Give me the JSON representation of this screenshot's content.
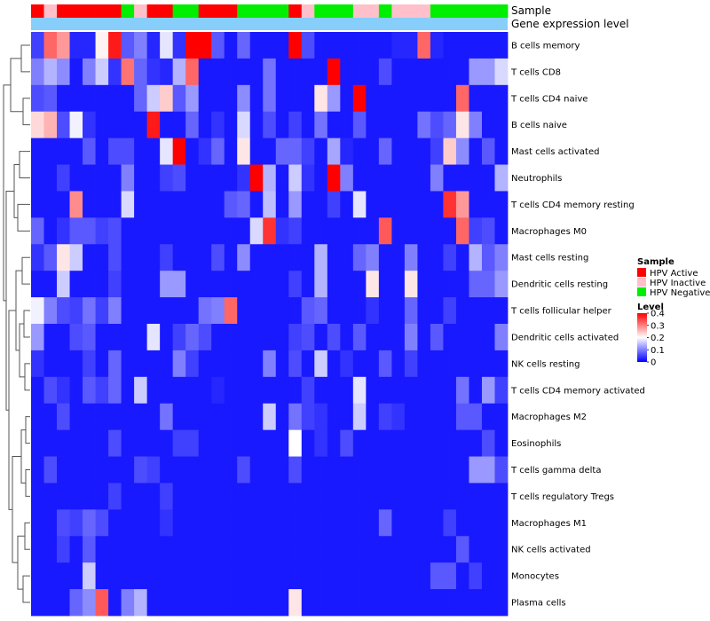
{
  "chart_data": {
    "type": "heatmap",
    "title": "",
    "annotations": {
      "sample_label": "Sample",
      "gene_expression_label": "Gene expression level",
      "samples": [
        "HPV Active",
        "HPV Inactive",
        "HPV Active",
        "HPV Active",
        "HPV Active",
        "HPV Active",
        "HPV Active",
        "HPV Negative",
        "HPV Inactive",
        "HPV Active",
        "HPV Active",
        "HPV Negative",
        "HPV Negative",
        "HPV Active",
        "HPV Active",
        "HPV Active",
        "HPV Negative",
        "HPV Negative",
        "HPV Negative",
        "HPV Negative",
        "HPV Active",
        "HPV Inactive",
        "HPV Negative",
        "HPV Negative",
        "HPV Negative",
        "HPV Inactive",
        "HPV Inactive",
        "HPV Negative",
        "HPV Inactive",
        "HPV Inactive",
        "HPV Inactive",
        "HPV Negative",
        "HPV Negative",
        "HPV Negative",
        "HPV Negative",
        "HPV Negative",
        "HPV Negative"
      ]
    },
    "rows": [
      "B cells memory",
      "T cells CD8",
      "T cells CD4 naive",
      "B cells naive",
      "Mast cells activated",
      "Neutrophils",
      "T cells CD4 memory resting",
      "Macrophages M0",
      "Mast cells resting",
      "Dendritic cells resting",
      "T cells follicular helper",
      "Dendritic cells activated",
      "NK cells resting",
      "T cells CD4 memory activated",
      "Macrophages M2",
      "Eosinophils",
      "T cells gamma delta",
      "T cells regulatory  Tregs",
      "Macrophages M1",
      "NK cells activated",
      "Monocytes",
      "Plasma cells"
    ],
    "values": [
      [
        0.05,
        0.32,
        0.28,
        0.03,
        0.03,
        0.21,
        0.38,
        0.07,
        0.1,
        0.03,
        0.18,
        0.04,
        0.4,
        0.4,
        0.07,
        0.02,
        0.08,
        0.02,
        0.02,
        0.02,
        0.4,
        0.06,
        0.02,
        0.02,
        0.02,
        0.02,
        0.02,
        0.02,
        0.03,
        0.03,
        0.32,
        0.03,
        0.02,
        0.02,
        0.02,
        0.02,
        0.02
      ],
      [
        0.1,
        0.14,
        0.11,
        0.02,
        0.1,
        0.16,
        0.04,
        0.31,
        0.08,
        0.04,
        0.03,
        0.14,
        0.32,
        0.02,
        0.02,
        0.02,
        0.02,
        0.02,
        0.09,
        0.02,
        0.02,
        0.02,
        0.02,
        0.4,
        0.02,
        0.02,
        0.02,
        0.06,
        0.02,
        0.02,
        0.02,
        0.02,
        0.02,
        0.02,
        0.12,
        0.12,
        0.17
      ],
      [
        0.06,
        0.07,
        0.02,
        0.02,
        0.02,
        0.02,
        0.02,
        0.02,
        0.08,
        0.16,
        0.24,
        0.07,
        0.12,
        0.02,
        0.02,
        0.02,
        0.11,
        0.02,
        0.09,
        0.02,
        0.02,
        0.02,
        0.22,
        0.12,
        0.02,
        0.4,
        0.02,
        0.02,
        0.02,
        0.02,
        0.02,
        0.02,
        0.02,
        0.32,
        0.02,
        0.02,
        0.02
      ],
      [
        0.23,
        0.26,
        0.06,
        0.19,
        0.04,
        0.02,
        0.02,
        0.02,
        0.02,
        0.38,
        0.02,
        0.02,
        0.08,
        0.02,
        0.04,
        0.02,
        0.17,
        0.02,
        0.06,
        0.02,
        0.05,
        0.02,
        0.09,
        0.02,
        0.02,
        0.07,
        0.02,
        0.02,
        0.02,
        0.02,
        0.09,
        0.06,
        0.08,
        0.22,
        0.1,
        0.02,
        0.02
      ],
      [
        0.02,
        0.02,
        0.02,
        0.02,
        0.07,
        0.02,
        0.06,
        0.06,
        0.02,
        0.02,
        0.18,
        0.4,
        0.02,
        0.04,
        0.08,
        0.02,
        0.22,
        0.02,
        0.02,
        0.08,
        0.08,
        0.05,
        0.02,
        0.13,
        0.03,
        0.02,
        0.02,
        0.08,
        0.02,
        0.02,
        0.02,
        0.05,
        0.24,
        0.11,
        0.02,
        0.07,
        0.02
      ],
      [
        0.02,
        0.02,
        0.05,
        0.02,
        0.02,
        0.02,
        0.02,
        0.1,
        0.02,
        0.02,
        0.05,
        0.06,
        0.02,
        0.02,
        0.02,
        0.02,
        0.04,
        0.4,
        0.14,
        0.02,
        0.16,
        0.04,
        0.02,
        0.4,
        0.1,
        0.02,
        0.02,
        0.02,
        0.02,
        0.02,
        0.02,
        0.1,
        0.02,
        0.02,
        0.02,
        0.02,
        0.14
      ],
      [
        0.02,
        0.02,
        0.02,
        0.29,
        0.02,
        0.02,
        0.02,
        0.17,
        0.02,
        0.02,
        0.02,
        0.02,
        0.02,
        0.02,
        0.02,
        0.07,
        0.08,
        0.02,
        0.15,
        0.02,
        0.12,
        0.02,
        0.02,
        0.05,
        0.02,
        0.18,
        0.02,
        0.02,
        0.02,
        0.02,
        0.02,
        0.02,
        0.36,
        0.28,
        0.02,
        0.02,
        0.02
      ],
      [
        0.08,
        0.02,
        0.04,
        0.07,
        0.07,
        0.05,
        0.06,
        0.02,
        0.02,
        0.02,
        0.02,
        0.02,
        0.02,
        0.02,
        0.02,
        0.02,
        0.02,
        0.17,
        0.36,
        0.04,
        0.05,
        0.02,
        0.02,
        0.02,
        0.02,
        0.02,
        0.02,
        0.33,
        0.02,
        0.02,
        0.02,
        0.02,
        0.02,
        0.32,
        0.05,
        0.06,
        0.02
      ],
      [
        0.04,
        0.07,
        0.22,
        0.16,
        0.02,
        0.02,
        0.06,
        0.02,
        0.02,
        0.02,
        0.05,
        0.02,
        0.02,
        0.02,
        0.06,
        0.02,
        0.11,
        0.02,
        0.02,
        0.02,
        0.02,
        0.02,
        0.14,
        0.02,
        0.02,
        0.08,
        0.1,
        0.02,
        0.02,
        0.1,
        0.02,
        0.02,
        0.05,
        0.02,
        0.14,
        0.07,
        0.1
      ],
      [
        0.02,
        0.02,
        0.16,
        0.02,
        0.02,
        0.02,
        0.05,
        0.02,
        0.02,
        0.02,
        0.12,
        0.12,
        0.02,
        0.02,
        0.02,
        0.02,
        0.02,
        0.02,
        0.02,
        0.02,
        0.05,
        0.02,
        0.14,
        0.02,
        0.02,
        0.02,
        0.22,
        0.02,
        0.02,
        0.22,
        0.02,
        0.02,
        0.02,
        0.02,
        0.08,
        0.08,
        0.12
      ],
      [
        0.19,
        0.1,
        0.06,
        0.05,
        0.09,
        0.05,
        0.1,
        0.02,
        0.02,
        0.02,
        0.02,
        0.02,
        0.02,
        0.09,
        0.1,
        0.32,
        0.02,
        0.02,
        0.02,
        0.02,
        0.02,
        0.07,
        0.08,
        0.02,
        0.02,
        0.02,
        0.04,
        0.02,
        0.02,
        0.08,
        0.02,
        0.02,
        0.05,
        0.02,
        0.02,
        0.02,
        0.02
      ],
      [
        0.12,
        0.02,
        0.02,
        0.06,
        0.07,
        0.02,
        0.02,
        0.02,
        0.02,
        0.18,
        0.02,
        0.05,
        0.08,
        0.06,
        0.02,
        0.02,
        0.02,
        0.02,
        0.02,
        0.02,
        0.05,
        0.06,
        0.02,
        0.06,
        0.02,
        0.07,
        0.02,
        0.02,
        0.02,
        0.1,
        0.02,
        0.07,
        0.02,
        0.02,
        0.02,
        0.02,
        0.1
      ],
      [
        0.04,
        0.02,
        0.02,
        0.02,
        0.05,
        0.02,
        0.08,
        0.02,
        0.02,
        0.02,
        0.02,
        0.1,
        0.05,
        0.02,
        0.02,
        0.02,
        0.02,
        0.02,
        0.1,
        0.02,
        0.06,
        0.02,
        0.16,
        0.02,
        0.04,
        0.02,
        0.02,
        0.07,
        0.02,
        0.05,
        0.02,
        0.02,
        0.02,
        0.02,
        0.02,
        0.02,
        0.02
      ],
      [
        0.02,
        0.06,
        0.04,
        0.02,
        0.07,
        0.05,
        0.08,
        0.02,
        0.16,
        0.02,
        0.02,
        0.02,
        0.02,
        0.02,
        0.03,
        0.02,
        0.02,
        0.02,
        0.02,
        0.02,
        0.02,
        0.05,
        0.02,
        0.02,
        0.02,
        0.18,
        0.02,
        0.02,
        0.02,
        0.02,
        0.02,
        0.02,
        0.02,
        0.09,
        0.02,
        0.12,
        0.05
      ],
      [
        0.02,
        0.02,
        0.06,
        0.02,
        0.02,
        0.02,
        0.02,
        0.02,
        0.02,
        0.02,
        0.09,
        0.02,
        0.02,
        0.02,
        0.02,
        0.02,
        0.02,
        0.02,
        0.16,
        0.02,
        0.09,
        0.05,
        0.04,
        0.02,
        0.02,
        0.16,
        0.02,
        0.05,
        0.04,
        0.02,
        0.02,
        0.02,
        0.02,
        0.07,
        0.07,
        0.02,
        0.02
      ],
      [
        0.02,
        0.02,
        0.02,
        0.02,
        0.02,
        0.02,
        0.06,
        0.02,
        0.02,
        0.02,
        0.02,
        0.05,
        0.05,
        0.02,
        0.02,
        0.02,
        0.02,
        0.02,
        0.02,
        0.02,
        0.2,
        0.02,
        0.04,
        0.02,
        0.06,
        0.02,
        0.02,
        0.02,
        0.02,
        0.02,
        0.02,
        0.02,
        0.02,
        0.02,
        0.02,
        0.06,
        0.02
      ],
      [
        0.02,
        0.06,
        0.02,
        0.02,
        0.02,
        0.02,
        0.02,
        0.02,
        0.06,
        0.05,
        0.02,
        0.02,
        0.02,
        0.02,
        0.02,
        0.02,
        0.06,
        0.02,
        0.02,
        0.02,
        0.06,
        0.02,
        0.02,
        0.02,
        0.02,
        0.02,
        0.02,
        0.02,
        0.02,
        0.02,
        0.02,
        0.02,
        0.02,
        0.02,
        0.12,
        0.12,
        0.06
      ],
      [
        0.02,
        0.02,
        0.02,
        0.02,
        0.02,
        0.02,
        0.05,
        0.02,
        0.02,
        0.02,
        0.05,
        0.02,
        0.02,
        0.02,
        0.02,
        0.02,
        0.02,
        0.02,
        0.02,
        0.02,
        0.02,
        0.02,
        0.02,
        0.02,
        0.02,
        0.02,
        0.02,
        0.02,
        0.02,
        0.02,
        0.02,
        0.02,
        0.02,
        0.02,
        0.02,
        0.02,
        0.02
      ],
      [
        0.02,
        0.02,
        0.06,
        0.05,
        0.08,
        0.06,
        0.02,
        0.02,
        0.02,
        0.02,
        0.04,
        0.02,
        0.02,
        0.02,
        0.02,
        0.02,
        0.02,
        0.02,
        0.02,
        0.02,
        0.02,
        0.02,
        0.02,
        0.02,
        0.02,
        0.02,
        0.02,
        0.08,
        0.02,
        0.02,
        0.02,
        0.02,
        0.05,
        0.02,
        0.02,
        0.02,
        0.02
      ],
      [
        0.02,
        0.02,
        0.05,
        0.02,
        0.07,
        0.02,
        0.02,
        0.02,
        0.02,
        0.02,
        0.02,
        0.02,
        0.02,
        0.02,
        0.02,
        0.02,
        0.02,
        0.02,
        0.02,
        0.02,
        0.02,
        0.02,
        0.02,
        0.02,
        0.02,
        0.02,
        0.02,
        0.02,
        0.02,
        0.02,
        0.02,
        0.02,
        0.02,
        0.07,
        0.02,
        0.02,
        0.02
      ],
      [
        0.02,
        0.02,
        0.02,
        0.02,
        0.16,
        0.02,
        0.02,
        0.02,
        0.02,
        0.02,
        0.02,
        0.02,
        0.02,
        0.02,
        0.02,
        0.02,
        0.02,
        0.02,
        0.02,
        0.02,
        0.02,
        0.02,
        0.02,
        0.02,
        0.02,
        0.02,
        0.02,
        0.02,
        0.02,
        0.02,
        0.02,
        0.07,
        0.07,
        0.02,
        0.05,
        0.02,
        0.02
      ],
      [
        0.02,
        0.02,
        0.02,
        0.08,
        0.11,
        0.33,
        0.02,
        0.1,
        0.14,
        0.02,
        0.02,
        0.02,
        0.02,
        0.02,
        0.02,
        0.02,
        0.02,
        0.02,
        0.02,
        0.02,
        0.22,
        0.02,
        0.02,
        0.02,
        0.02,
        0.02,
        0.02,
        0.02,
        0.02,
        0.02,
        0.02,
        0.02,
        0.02,
        0.02,
        0.02,
        0.02,
        0.02
      ]
    ],
    "legend": {
      "sample_title": "Sample",
      "sample_entries": [
        {
          "label": "HPV Active",
          "color": "#ff0000"
        },
        {
          "label": "HPV Inactive",
          "color": "#ffc0cb"
        },
        {
          "label": "HPV Negative",
          "color": "#00ee00"
        }
      ],
      "level_title": "Level",
      "level_ticks": [
        "0.4",
        "0.3",
        "0.2",
        "0.1",
        "0"
      ],
      "level_range": [
        0,
        0.4
      ],
      "gene_expression_color": "#87cefa"
    },
    "colors": {
      "low": "#0000ff",
      "mid": "#ffffff",
      "high": "#ff0000"
    }
  }
}
